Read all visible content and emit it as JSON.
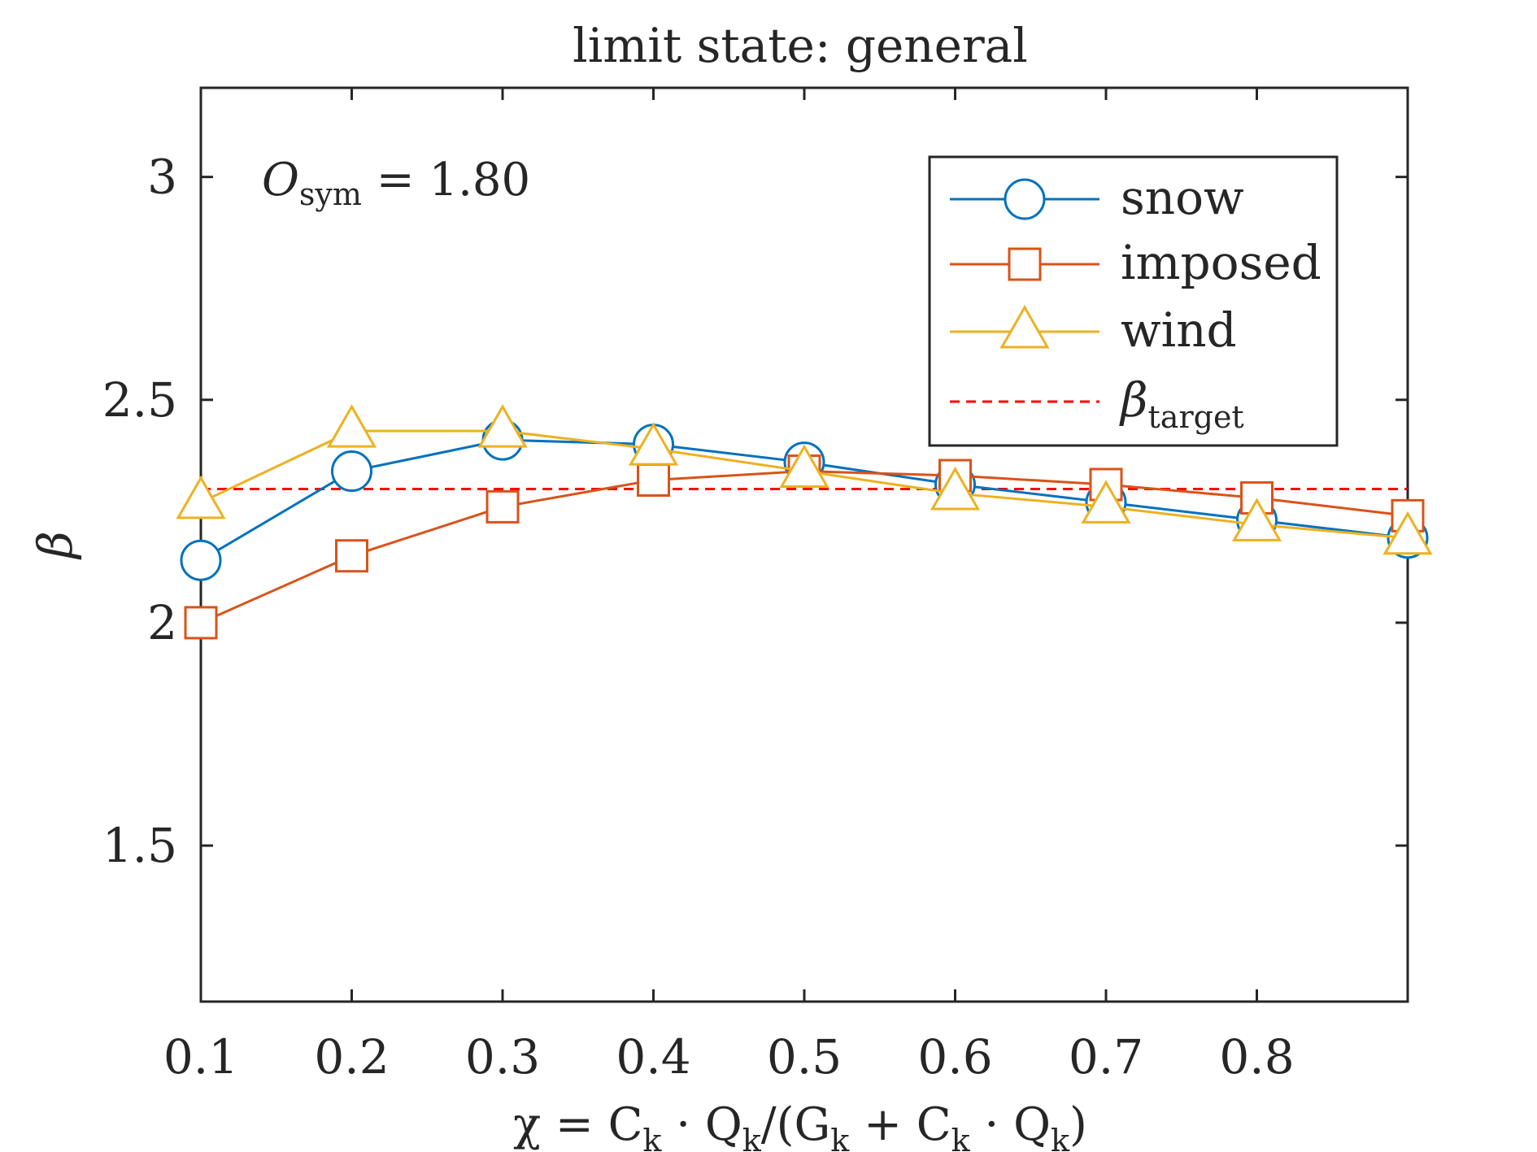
{
  "chart_data": {
    "type": "line",
    "title": "limit state: general",
    "annotation": "O_sym = 1.80",
    "annotation_parts": {
      "symbol": "O",
      "subscript": "sym",
      "rest": " = 1.80"
    },
    "xlabel": "χ = C_k · Q_k/(G_k + C_k · Q_k)",
    "xlabel_segments": [
      {
        "t": "χ = C",
        "sub": false
      },
      {
        "t": "k",
        "sub": true
      },
      {
        "t": " · Q",
        "sub": false
      },
      {
        "t": "k",
        "sub": true
      },
      {
        "t": "/(G",
        "sub": false
      },
      {
        "t": "k",
        "sub": true
      },
      {
        "t": " + C",
        "sub": false
      },
      {
        "t": "k",
        "sub": true
      },
      {
        "t": " · Q",
        "sub": false
      },
      {
        "t": "k",
        "sub": true
      },
      {
        "t": ")",
        "sub": false
      }
    ],
    "ylabel": "β",
    "xlim": [
      0.1,
      0.9
    ],
    "ylim": [
      1.15,
      3.2
    ],
    "xticks": [
      0.1,
      0.2,
      0.3,
      0.4,
      0.5,
      0.6,
      0.7,
      0.8
    ],
    "xtick_labels": [
      "0.1",
      "0.2",
      "0.3",
      "0.4",
      "0.5",
      "0.6",
      "0.7",
      "0.8"
    ],
    "yticks": [
      1.5,
      2,
      2.5,
      3
    ],
    "ytick_labels": [
      "1.5",
      "2",
      "2.5",
      "3"
    ],
    "x": [
      0.1,
      0.2,
      0.3,
      0.4,
      0.5,
      0.6,
      0.7,
      0.8,
      0.9
    ],
    "series": [
      {
        "name": "snow",
        "marker": "circle",
        "color": "#0072BD",
        "values": [
          2.14,
          2.34,
          2.41,
          2.4,
          2.36,
          2.31,
          2.27,
          2.23,
          2.19
        ]
      },
      {
        "name": "imposed",
        "marker": "square",
        "color": "#D95319",
        "values": [
          2.0,
          2.15,
          2.26,
          2.32,
          2.34,
          2.33,
          2.31,
          2.28,
          2.24
        ]
      },
      {
        "name": "wind",
        "marker": "triangle",
        "color": "#EDB120",
        "values": [
          2.27,
          2.43,
          2.43,
          2.39,
          2.34,
          2.29,
          2.26,
          2.22,
          2.19
        ]
      }
    ],
    "reference_line": {
      "name": "β_target",
      "name_base": "β",
      "name_sub": "target",
      "value": 2.3,
      "color": "#FF0000",
      "style": "dashed"
    },
    "legend_position": "top-right",
    "grid": false
  }
}
